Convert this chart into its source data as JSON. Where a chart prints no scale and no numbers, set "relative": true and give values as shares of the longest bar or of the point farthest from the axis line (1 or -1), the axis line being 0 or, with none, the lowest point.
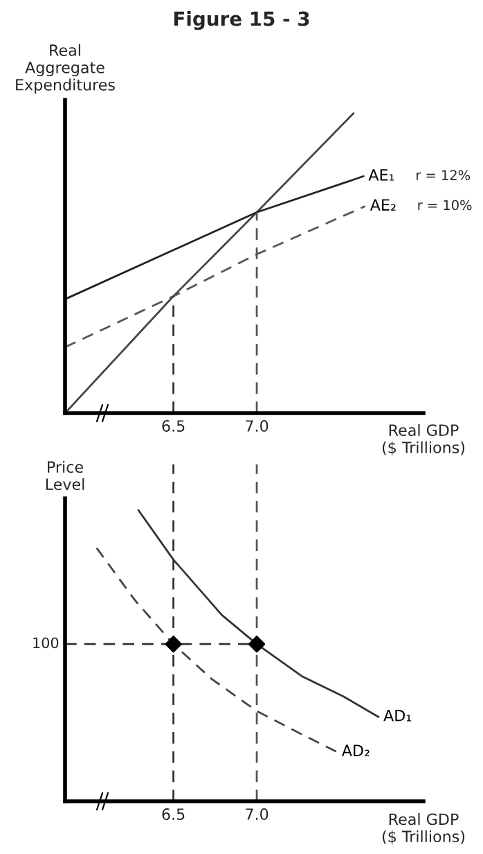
{
  "chart_data": [
    {
      "type": "line",
      "title": "Figure 15 - 3",
      "ylabel": "Real\nAggregate\nExpenditures",
      "xlabel": "Real GDP\n($ Trillions)",
      "relative": true,
      "xlim": [
        5.85,
        8.0
      ],
      "xticks": [
        6.5,
        {
          "value": 7.0,
          "label": "7.0"
        }
      ],
      "tick_labels": "x",
      "grid": false,
      "legend": false,
      "series": [
        {
          "color": "#444444",
          "line_style": "solid",
          "x": [
            5.85,
            6.5,
            7.0,
            7.58
          ],
          "values": [
            0,
            0.39,
            0.67,
            1.0
          ]
        },
        {
          "name": "AE₁",
          "color": "#222222",
          "line_style": "solid",
          "x": [
            5.85,
            7.0,
            7.64
          ],
          "values": [
            0.38,
            0.67,
            0.79
          ]
        },
        {
          "name": "AE₂",
          "color": "#555555",
          "line_style": "dashed",
          "x": [
            5.85,
            6.5,
            7.0,
            7.65
          ],
          "values": [
            0.22,
            0.39,
            0.53,
            0.69
          ]
        },
        {
          "color": "#333333",
          "line_style": "dashed",
          "x": [
            6.5,
            6.5
          ],
          "values": [
            0,
            0.39
          ]
        },
        {
          "color": "#555555",
          "line_style": "dashed",
          "x": [
            7.0,
            7.0
          ],
          "values": [
            0,
            0.67
          ]
        }
      ],
      "annotations": [
        "r = 12%",
        "r = 10%"
      ]
    },
    {
      "type": "line",
      "ylabel": "Price\nLevel",
      "xlabel": "Real GDP\n($ Trillions)",
      "relative": true,
      "xlim": [
        5.85,
        8.0
      ],
      "xticks": [
        6.5,
        {
          "value": 7.0,
          "label": "7.0"
        }
      ],
      "tick_labels": "x",
      "grid": false,
      "legend": false,
      "series": [
        {
          "name": "AD₁",
          "color": "#333333",
          "line_style": "solid",
          "x": [
            6.29,
            6.5,
            6.79,
            7.0,
            7.27,
            7.52,
            7.73
          ],
          "values": [
            1.0,
            0.83,
            0.64,
            0.54,
            0.43,
            0.36,
            0.29
          ]
        },
        {
          "name": "AD₂",
          "color": "#444444",
          "line_style": "dashed",
          "x": [
            6.04,
            6.27,
            6.5,
            6.73,
            7.0,
            7.27,
            7.48
          ],
          "values": [
            0.87,
            0.69,
            0.54,
            0.42,
            0.31,
            0.23,
            0.17
          ]
        },
        {
          "color": "#333333",
          "line_style": "dashed",
          "x": [
            5.85,
            7.0
          ],
          "values": [
            0.54,
            0.54
          ]
        },
        {
          "type": "scatter",
          "color": "#000000",
          "marker": "diamond",
          "x": [
            6.5,
            7.0
          ],
          "values": [
            0.54,
            0.54
          ]
        }
      ],
      "ref_lines": [
        {
          "axis": "x",
          "value": 6.5,
          "color": "#333333",
          "line_style": "dashed"
        },
        {
          "axis": "x",
          "value": 7.0,
          "color": "#555555",
          "line_style": "dashed"
        }
      ],
      "annotations": [
        "100"
      ]
    }
  ]
}
